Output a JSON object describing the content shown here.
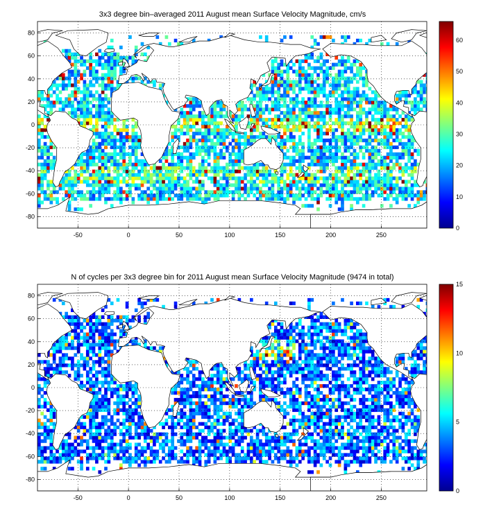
{
  "chart_data": [
    {
      "type": "heatmap",
      "title": "3x3 degree bin–averaged 2011 August mean Surface Velocity Magnitude, cm/s",
      "xlabel": "",
      "ylabel": "",
      "xlim": [
        -90,
        295
      ],
      "ylim": [
        -90,
        90
      ],
      "x_ticks": [
        "-50",
        "0",
        "50",
        "100",
        "150",
        "200",
        "250"
      ],
      "y_ticks": [
        "80",
        "60",
        "40",
        "20",
        "0",
        "-20",
        "-40",
        "-60",
        "-80"
      ],
      "bin_size_deg": 3,
      "grid": true,
      "colormap": "jet",
      "colorbar": {
        "range": [
          0,
          66
        ],
        "ticks": [
          "0",
          "10",
          "20",
          "30",
          "40",
          "50",
          "60"
        ],
        "placement": "right"
      },
      "background": "world coastline map, dotted graticule"
    },
    {
      "type": "heatmap",
      "title": "N of cycles per 3x3 degree bin for 2011 August mean Surface Velocity Magnitude (9474 in total)",
      "xlabel": "",
      "ylabel": "",
      "xlim": [
        -90,
        295
      ],
      "ylim": [
        -90,
        90
      ],
      "x_ticks": [
        "-50",
        "0",
        "50",
        "100",
        "150",
        "200",
        "250"
      ],
      "y_ticks": [
        "80",
        "60",
        "40",
        "20",
        "0",
        "-20",
        "-40",
        "-60",
        "-80"
      ],
      "bin_size_deg": 3,
      "grid": true,
      "colormap": "jet",
      "colorbar": {
        "range": [
          0,
          15
        ],
        "ticks": [
          "0",
          "5",
          "10",
          "15"
        ],
        "placement": "right"
      },
      "background": "world coastline map, dotted graticule"
    }
  ],
  "colors": {
    "jet_low": "#00008f",
    "jet_mid": "#00ffff",
    "jet_high": "#800000",
    "grid": "#000000"
  }
}
